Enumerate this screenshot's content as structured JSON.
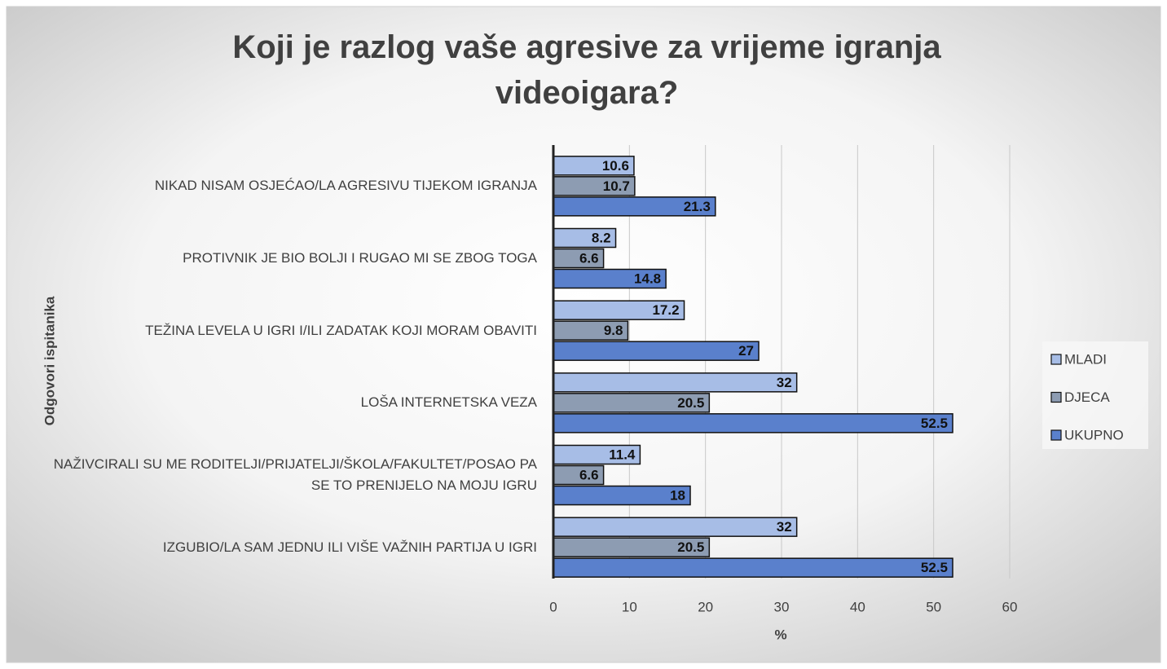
{
  "chart_data": {
    "type": "barh",
    "title": "Koji je razlog vaše agresive za vrijeme igranja videoigara?",
    "xlabel": "%",
    "ylabel": "Odgovori ispitanika",
    "categories": [
      "NIKAD NISAM OSJEĆAO/LA AGRESIVU TIJEKOM IGRANJA",
      "PROTIVNIK JE BIO BOLJI I RUGAO MI SE ZBOG TOGA",
      "TEŽINA LEVELA U IGRI I/ILI ZADATAK KOJI MORAM OBAVITI",
      "LOŠA INTERNETSKA VEZA",
      "NAŽIVCIRALI SU ME RODITELJI/PRIJATELJI/ŠKOLA/FAKULTET/POSAO PA SE TO PRENIJELO NA MOJU IGRU",
      "IZGUBIO/LA SAM JEDNU ILI VIŠE VAŽNIH PARTIJA U IGRI"
    ],
    "series": [
      {
        "name": "MLADI",
        "color": "#a7bde6",
        "values": [
          10.6,
          8.2,
          17.2,
          32,
          11.4,
          32
        ]
      },
      {
        "name": "DJECA",
        "color": "#8d9cb2",
        "values": [
          10.7,
          6.6,
          9.8,
          20.5,
          6.6,
          20.5
        ]
      },
      {
        "name": "UKUPNO",
        "color": "#5a80cc",
        "values": [
          21.3,
          14.8,
          27,
          52.5,
          18,
          52.5
        ]
      }
    ],
    "xlim": [
      0,
      60
    ],
    "xticks": [
      0,
      10,
      20,
      30,
      40,
      50,
      60
    ],
    "grid": true,
    "legend": "right"
  }
}
